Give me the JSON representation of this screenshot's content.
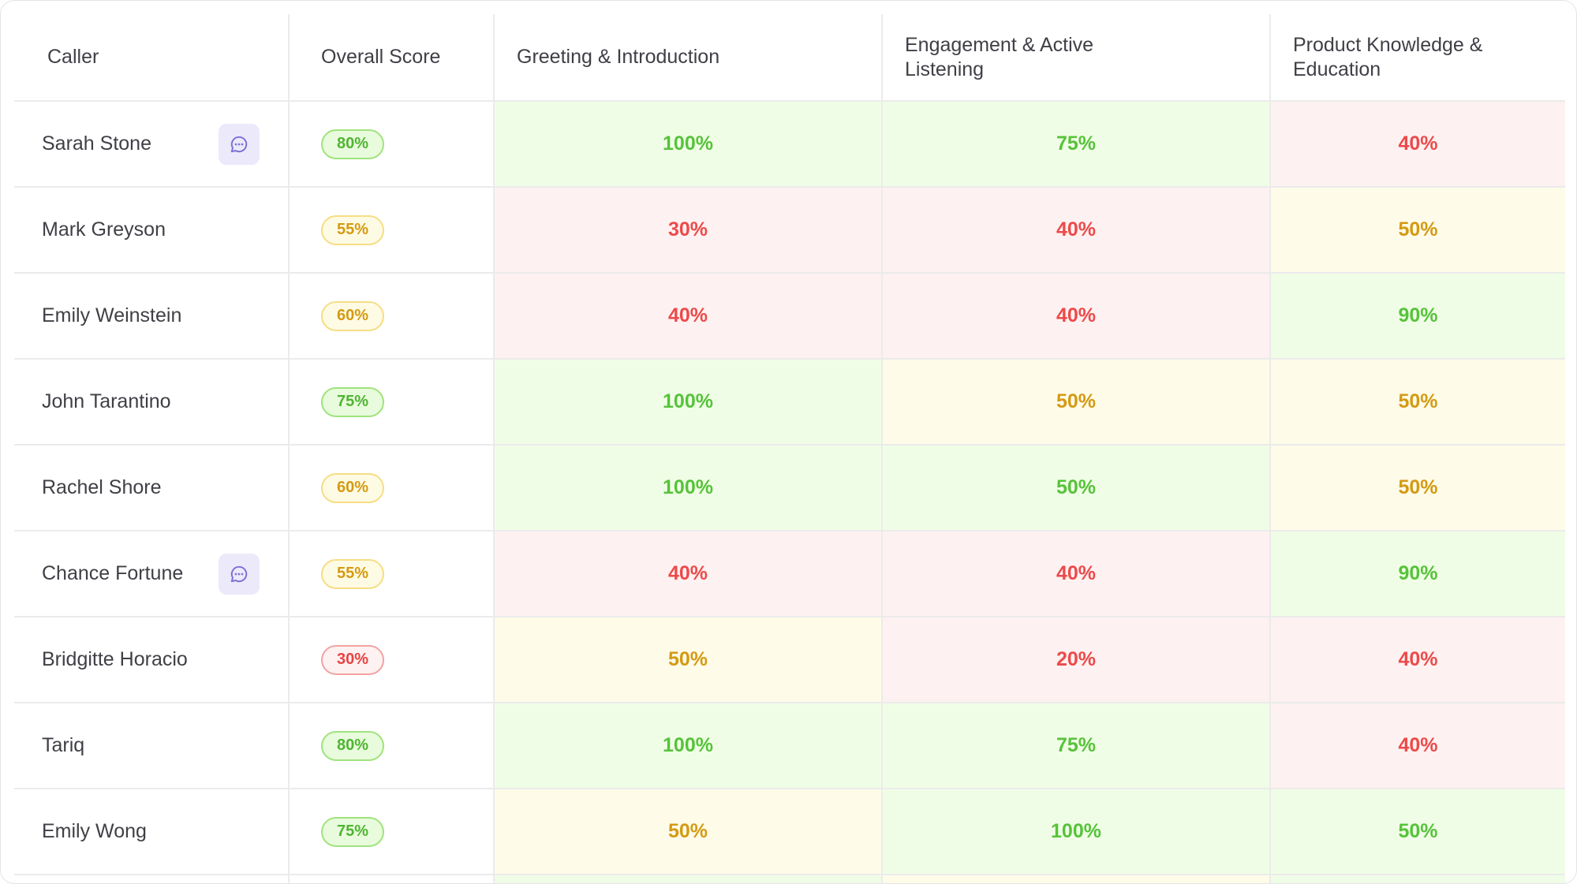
{
  "columns": [
    "Caller",
    "Overall Score",
    "Greeting & Introduction",
    "Engagement & Active Listening",
    "Product Knowledge & Education"
  ],
  "colors": {
    "green": "#56c33a",
    "red": "#ec4a4a",
    "yellow": "#d49a13",
    "chat_bg": "#ece9fb",
    "chat_icon": "#7a6fd6"
  },
  "rows": [
    {
      "caller": "Sarah Stone",
      "has_chat": true,
      "overall": "80%",
      "overall_status": "green",
      "greeting": "100%",
      "greeting_status": "green",
      "engagement": "75%",
      "engagement_status": "green",
      "knowledge": "40%",
      "knowledge_status": "red"
    },
    {
      "caller": "Mark Greyson",
      "has_chat": false,
      "overall": "55%",
      "overall_status": "yellow",
      "greeting": "30%",
      "greeting_status": "red",
      "engagement": "40%",
      "engagement_status": "red",
      "knowledge": "50%",
      "knowledge_status": "yellow"
    },
    {
      "caller": "Emily Weinstein",
      "has_chat": false,
      "overall": "60%",
      "overall_status": "yellow",
      "greeting": "40%",
      "greeting_status": "red",
      "engagement": "40%",
      "engagement_status": "red",
      "knowledge": "90%",
      "knowledge_status": "green"
    },
    {
      "caller": "John Tarantino",
      "has_chat": false,
      "overall": "75%",
      "overall_status": "green",
      "greeting": "100%",
      "greeting_status": "green",
      "engagement": "50%",
      "engagement_status": "yellow",
      "knowledge": "50%",
      "knowledge_status": "yellow"
    },
    {
      "caller": "Rachel Shore",
      "has_chat": false,
      "overall": "60%",
      "overall_status": "yellow",
      "greeting": "100%",
      "greeting_status": "green",
      "engagement": "50%",
      "engagement_status": "green",
      "knowledge": "50%",
      "knowledge_status": "yellow"
    },
    {
      "caller": "Chance Fortune",
      "has_chat": true,
      "overall": "55%",
      "overall_status": "yellow",
      "greeting": "40%",
      "greeting_status": "red",
      "engagement": "40%",
      "engagement_status": "red",
      "knowledge": "90%",
      "knowledge_status": "green"
    },
    {
      "caller": "Bridgitte Horacio",
      "has_chat": false,
      "overall": "30%",
      "overall_status": "red",
      "greeting": "50%",
      "greeting_status": "yellow",
      "engagement": "20%",
      "engagement_status": "red",
      "knowledge": "40%",
      "knowledge_status": "red"
    },
    {
      "caller": "Tariq",
      "has_chat": false,
      "overall": "80%",
      "overall_status": "green",
      "greeting": "100%",
      "greeting_status": "green",
      "engagement": "75%",
      "engagement_status": "green",
      "knowledge": "40%",
      "knowledge_status": "red"
    },
    {
      "caller": "Emily Wong",
      "has_chat": false,
      "overall": "75%",
      "overall_status": "green",
      "greeting": "50%",
      "greeting_status": "yellow",
      "engagement": "100%",
      "engagement_status": "green",
      "knowledge": "50%",
      "knowledge_status": "green"
    }
  ],
  "partial_row_status": [
    "green",
    "yellow",
    "green"
  ]
}
